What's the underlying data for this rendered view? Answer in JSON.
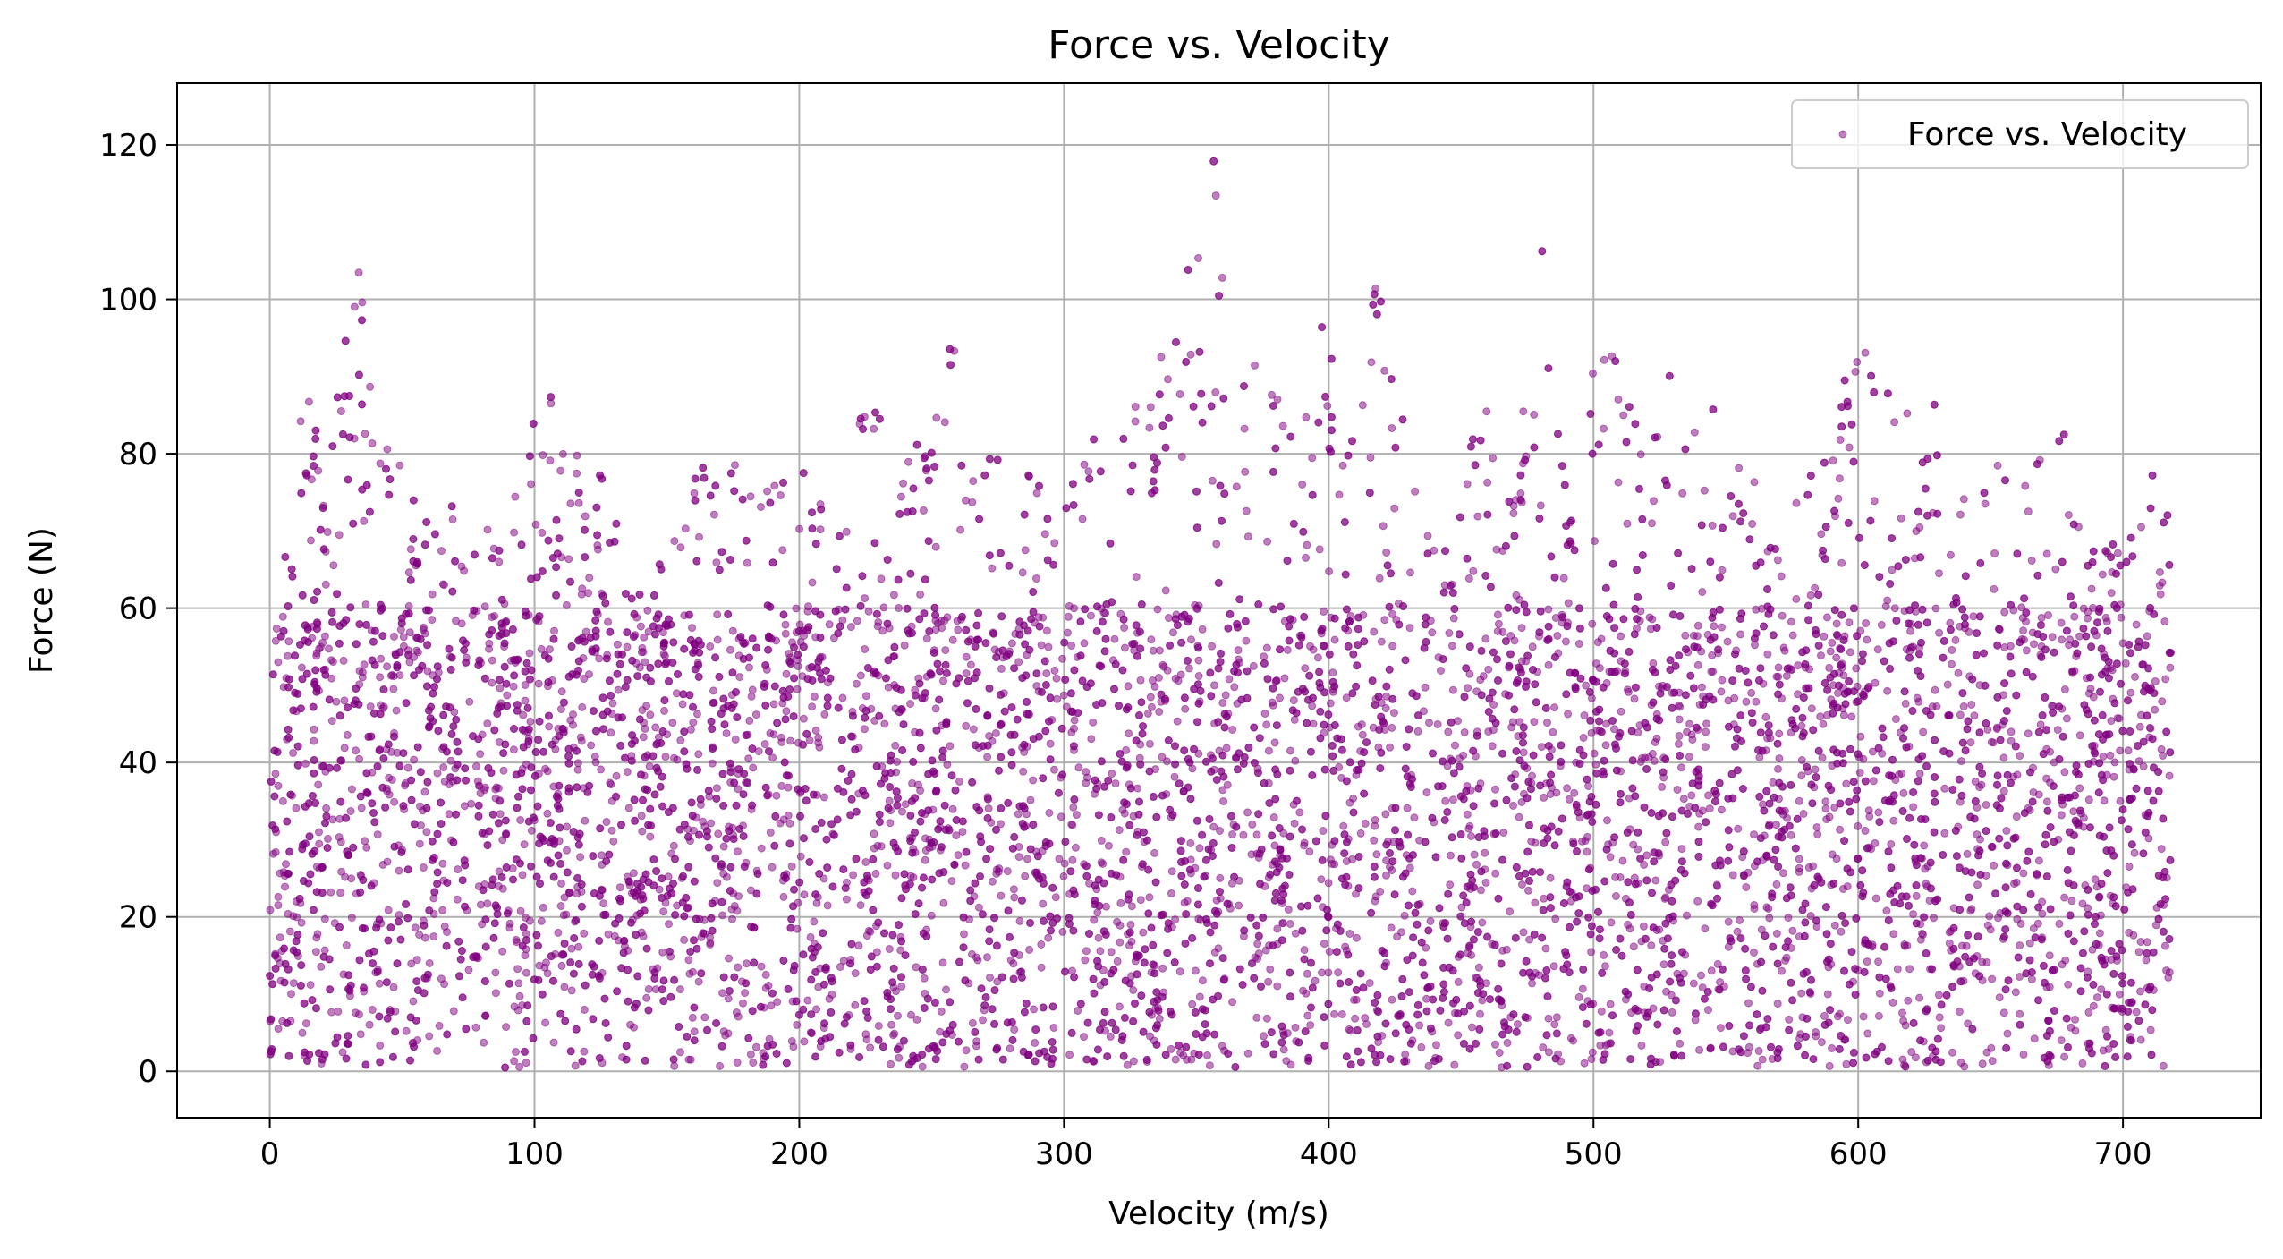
{
  "chart_data": {
    "type": "scatter",
    "title": "Force vs. Velocity",
    "xlabel": "Velocity (m/s)",
    "ylabel": "Force (N)",
    "xlim": [
      -35,
      752
    ],
    "ylim": [
      -6,
      128
    ],
    "xticks": [
      0,
      100,
      200,
      300,
      400,
      500,
      600,
      700
    ],
    "yticks": [
      0,
      20,
      40,
      60,
      80,
      100,
      120
    ],
    "grid": true,
    "legend_position": "top-right",
    "series": [
      {
        "name": "Force vs. Velocity",
        "color": "#800080",
        "marker": "circle",
        "alpha": 0.5,
        "x_range": [
          0,
          718
        ],
        "envelope": [
          [
            0,
            49
          ],
          [
            5,
            66
          ],
          [
            10,
            88
          ],
          [
            15,
            90
          ],
          [
            20,
            80
          ],
          [
            25,
            88
          ],
          [
            30,
            107
          ],
          [
            35,
            103
          ],
          [
            40,
            80
          ],
          [
            45,
            81
          ],
          [
            50,
            81
          ],
          [
            55,
            75
          ],
          [
            60,
            73
          ],
          [
            70,
            74
          ],
          [
            80,
            72
          ],
          [
            90,
            74
          ],
          [
            100,
            85
          ],
          [
            105,
            91
          ],
          [
            110,
            80
          ],
          [
            120,
            81
          ],
          [
            125,
            83
          ],
          [
            130,
            72
          ],
          [
            140,
            65
          ],
          [
            150,
            66
          ],
          [
            160,
            80
          ],
          [
            170,
            78
          ],
          [
            180,
            79
          ],
          [
            190,
            76
          ],
          [
            200,
            82
          ],
          [
            210,
            76
          ],
          [
            220,
            81
          ],
          [
            228,
            93
          ],
          [
            235,
            73
          ],
          [
            245,
            83
          ],
          [
            258,
            95
          ],
          [
            265,
            82
          ],
          [
            275,
            84
          ],
          [
            290,
            76
          ],
          [
            300,
            75
          ],
          [
            312,
            88
          ],
          [
            320,
            82
          ],
          [
            332,
            90
          ],
          [
            345,
            101
          ],
          [
            357,
            122
          ],
          [
            365,
            94
          ],
          [
            372,
            104
          ],
          [
            385,
            85
          ],
          [
            395,
            102
          ],
          [
            405,
            86
          ],
          [
            418,
            109
          ],
          [
            425,
            97
          ],
          [
            435,
            72
          ],
          [
            445,
            73
          ],
          [
            460,
            89
          ],
          [
            470,
            74
          ],
          [
            480,
            110
          ],
          [
            488,
            80
          ],
          [
            500,
            91
          ],
          [
            510,
            96
          ],
          [
            520,
            76
          ],
          [
            530,
            101
          ],
          [
            540,
            82
          ],
          [
            548,
            94
          ],
          [
            555,
            80
          ],
          [
            565,
            76
          ],
          [
            580,
            81
          ],
          [
            590,
            80
          ],
          [
            600,
            102
          ],
          [
            605,
            93
          ],
          [
            612,
            88
          ],
          [
            625,
            89
          ],
          [
            635,
            85
          ],
          [
            645,
            74
          ],
          [
            655,
            80
          ],
          [
            665,
            76
          ],
          [
            672,
            85
          ],
          [
            680,
            83
          ],
          [
            690,
            69
          ],
          [
            700,
            68
          ],
          [
            705,
            80
          ],
          [
            710,
            78
          ],
          [
            718,
            74
          ]
        ],
        "floor": 0.5
      }
    ]
  }
}
